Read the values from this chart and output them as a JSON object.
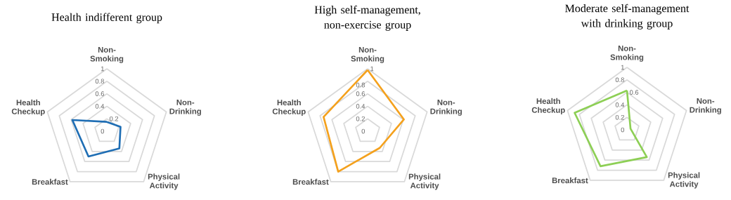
{
  "chart_data": [
    {
      "type": "radar",
      "title": "Health indifferent group",
      "categories": [
        "Non-Smoking",
        "Non-Drinking",
        "Physical Activity",
        "Breakfast",
        "Health Checkup"
      ],
      "series": [
        {
          "color": "#1f6eb4",
          "values": [
            0.15,
            0.23,
            0.34,
            0.5,
            0.58
          ]
        }
      ],
      "ylim": [
        0,
        1
      ],
      "yticks": [
        0,
        0.2,
        0.4,
        0.6,
        0.8,
        1
      ],
      "grid": true
    },
    {
      "type": "radar",
      "title": "High self-management, non-exercise group",
      "categories": [
        "Non-Smoking",
        "Non-Drinking",
        "Physical Activity",
        "Breakfast",
        "Health Checkup"
      ],
      "series": [
        {
          "color": "#f4a11d",
          "values": [
            0.98,
            0.61,
            0.33,
            0.8,
            0.74
          ]
        }
      ],
      "ylim": [
        0,
        1
      ],
      "yticks": [
        0,
        0.2,
        0.4,
        0.6,
        0.8,
        1
      ],
      "grid": true
    },
    {
      "type": "radar",
      "title": "Moderate self-management with drinking group",
      "categories": [
        "Non-Smoking",
        "Non-Drinking",
        "Physical Activity",
        "Breakfast",
        "Health Checkup"
      ],
      "series": [
        {
          "color": "#8dcf55",
          "values": [
            0.63,
            0.06,
            0.54,
            0.72,
            0.88
          ]
        }
      ],
      "ylim": [
        0,
        1
      ],
      "yticks": [
        0,
        0.2,
        0.4,
        0.6,
        0.8,
        1
      ],
      "grid": true
    }
  ]
}
